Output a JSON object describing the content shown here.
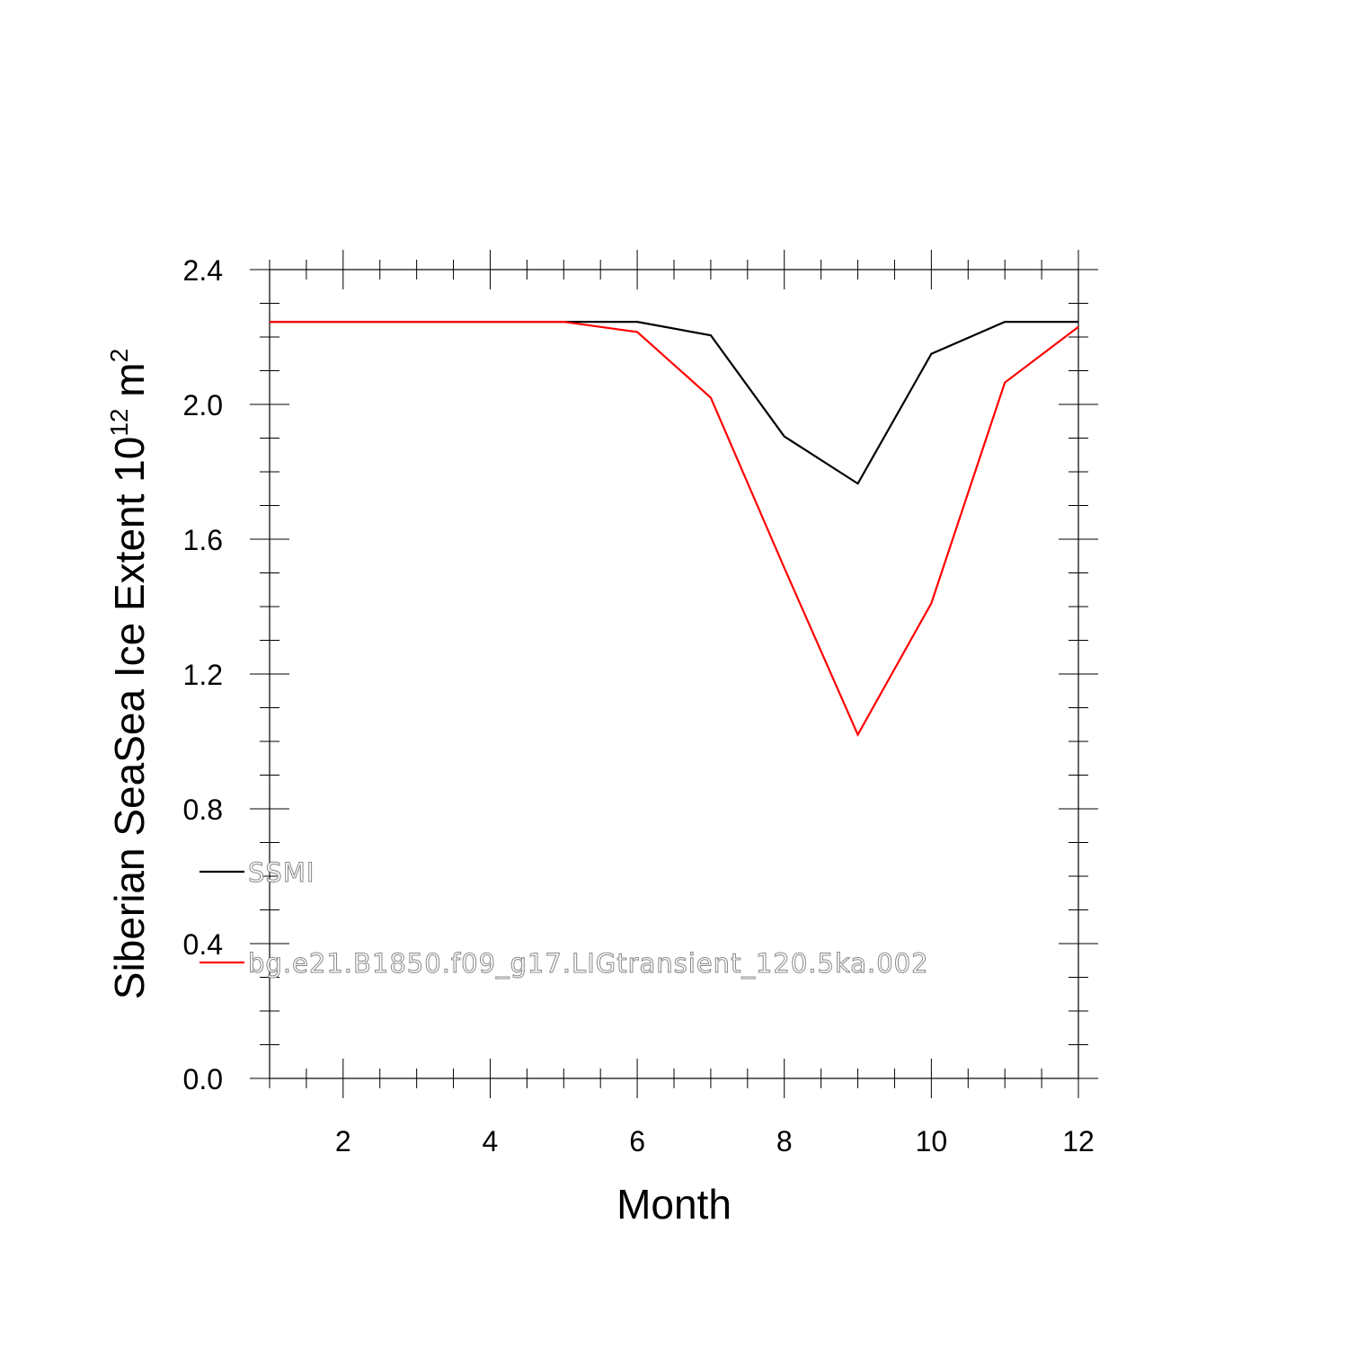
{
  "chart_data": {
    "type": "line",
    "title": "",
    "xlabel": "Month",
    "ylabel": {
      "text": "Siberian SeaSea Ice Extent 10",
      "superscript": "12",
      "unit": " m",
      "unit_superscript": "2"
    },
    "xlim": [
      1,
      12
    ],
    "ylim": [
      0.0,
      2.4
    ],
    "xticks": [
      "2",
      "4",
      "6",
      "8",
      "10",
      "12"
    ],
    "yticks": [
      "0.0",
      "0.4",
      "0.8",
      "1.2",
      "1.6",
      "2.0",
      "2.4"
    ],
    "grid": false,
    "legend_placement": "lower-left",
    "x": [
      1,
      2,
      3,
      4,
      5,
      6,
      7,
      8,
      9,
      10,
      11,
      12
    ],
    "series": [
      {
        "name": "SSMI",
        "color": "#000000",
        "values": [
          2.245,
          2.245,
          2.245,
          2.245,
          2.245,
          2.245,
          2.205,
          1.905,
          1.765,
          2.15,
          2.245,
          2.245
        ]
      },
      {
        "name": "bg.e21.B1850.f09_g17.LIGtransient_120.5ka.002",
        "color": "#ff0000",
        "values": [
          2.245,
          2.245,
          2.245,
          2.245,
          2.245,
          2.215,
          2.02,
          1.515,
          1.02,
          1.41,
          2.065,
          2.23
        ]
      }
    ]
  }
}
